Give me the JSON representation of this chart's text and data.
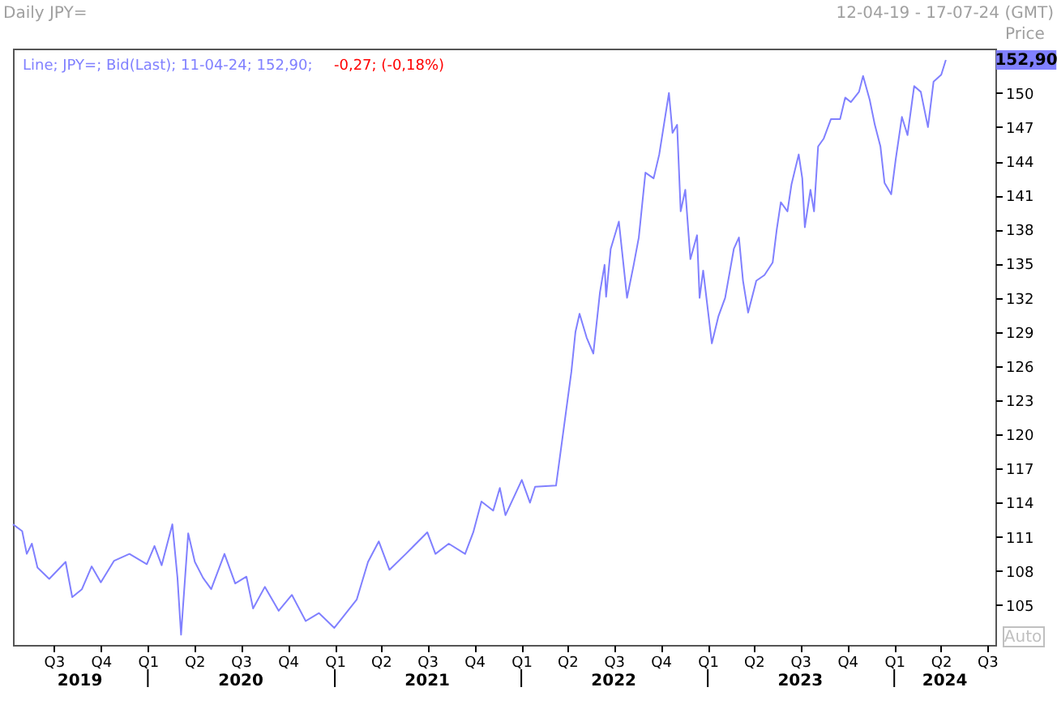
{
  "chart_data": {
    "type": "line",
    "title": "Daily JPY=",
    "subtitle": "12-04-19 - 17-07-24 (GMT)",
    "ylabel": "Price",
    "x": [
      "2019-04-12",
      "2019-04-30",
      "2019-05-09",
      "2019-05-19",
      "2019-05-30",
      "2019-06-22",
      "2019-07-24",
      "2019-08-06",
      "2019-08-25",
      "2019-09-13",
      "2019-10-01",
      "2019-10-27",
      "2019-11-26",
      "2019-12-30",
      "2020-01-14",
      "2020-01-28",
      "2020-02-18",
      "2020-02-28",
      "2020-03-06",
      "2020-03-20",
      "2020-04-02",
      "2020-04-18",
      "2020-05-04",
      "2020-05-30",
      "2020-06-20",
      "2020-07-12",
      "2020-07-25",
      "2020-08-17",
      "2020-09-13",
      "2020-10-09",
      "2020-11-05",
      "2020-12-01",
      "2020-12-31",
      "2021-01-23",
      "2021-02-13",
      "2021-03-07",
      "2021-03-28",
      "2021-04-18",
      "2021-05-20",
      "2021-07-01",
      "2021-07-17",
      "2021-08-12",
      "2021-09-13",
      "2021-09-29",
      "2021-10-15",
      "2021-11-07",
      "2021-11-20",
      "2021-12-01",
      "2022-01-02",
      "2022-01-18",
      "2022-01-28",
      "2022-03-10",
      "2022-04-09",
      "2022-04-17",
      "2022-04-25",
      "2022-05-09",
      "2022-05-22",
      "2022-06-04",
      "2022-06-13",
      "2022-06-16",
      "2022-06-25",
      "2022-07-11",
      "2022-07-27",
      "2022-08-09",
      "2022-08-19",
      "2022-09-01",
      "2022-09-17",
      "2022-09-28",
      "2022-10-11",
      "2022-10-17",
      "2022-10-24",
      "2022-11-02",
      "2022-11-09",
      "2022-11-18",
      "2022-11-28",
      "2022-12-11",
      "2022-12-16",
      "2022-12-23",
      "2023-01-09",
      "2023-01-22",
      "2023-02-04",
      "2023-02-21",
      "2023-03-03",
      "2023-03-11",
      "2023-03-21",
      "2023-04-06",
      "2023-04-22",
      "2023-05-08",
      "2023-05-16",
      "2023-05-24",
      "2023-06-06",
      "2023-06-14",
      "2023-06-28",
      "2023-07-05",
      "2023-07-10",
      "2023-07-21",
      "2023-07-28",
      "2023-08-05",
      "2023-08-16",
      "2023-08-30",
      "2023-09-17",
      "2023-09-27",
      "2023-10-08",
      "2023-10-24",
      "2023-11-01",
      "2023-11-14",
      "2023-11-24",
      "2023-12-05",
      "2023-12-13",
      "2023-12-26",
      "2024-01-04",
      "2024-01-16",
      "2024-01-27",
      "2024-02-09",
      "2024-02-22",
      "2024-03-07",
      "2024-03-18",
      "2024-04-02",
      "2024-04-11"
    ],
    "series": [
      {
        "name": "Line; JPY=; Bid(Last); 11-04-24; 152,90;",
        "color": "#8080ff",
        "values": [
          112.1,
          111.5,
          109.5,
          110.4,
          108.3,
          107.3,
          108.8,
          105.7,
          106.4,
          108.4,
          107.0,
          108.9,
          109.5,
          108.6,
          110.2,
          108.5,
          112.1,
          107.4,
          102.4,
          111.3,
          108.8,
          107.4,
          106.4,
          109.5,
          106.9,
          107.5,
          104.7,
          106.6,
          104.5,
          105.9,
          103.6,
          104.3,
          103.0,
          104.3,
          105.5,
          108.8,
          110.6,
          108.1,
          109.5,
          111.4,
          109.5,
          110.4,
          109.5,
          111.4,
          114.1,
          113.3,
          115.3,
          112.9,
          116.0,
          114.0,
          115.4,
          115.5,
          125.5,
          129.0,
          130.6,
          128.5,
          127.1,
          132.5,
          134.9,
          132.1,
          136.3,
          138.7,
          132.0,
          134.9,
          137.3,
          143.0,
          142.5,
          144.6,
          148.3,
          150.0,
          146.5,
          147.2,
          139.6,
          141.5,
          135.4,
          137.5,
          132.0,
          134.4,
          128.0,
          130.4,
          132.0,
          136.3,
          137.3,
          133.5,
          130.7,
          133.5,
          134.0,
          135.1,
          138.0,
          140.4,
          139.6,
          142.0,
          144.6,
          142.5,
          138.2,
          141.5,
          139.6,
          145.3,
          146.0,
          147.7,
          147.7,
          149.6,
          149.2,
          150.1,
          151.5,
          149.4,
          147.2,
          145.3,
          142.1,
          141.1,
          144.2,
          147.9,
          146.3,
          150.6,
          150.1,
          147.0,
          151.0,
          151.6,
          152.9
        ]
      }
    ],
    "annotations": [
      "-0,27; (-0,18%)",
      "Auto",
      {
        "text": "152,90",
        "y": 152.9
      }
    ],
    "xlim": [
      "2019-04-12",
      "2024-07-17"
    ],
    "xticks": [
      {
        "value": "2019-07-01",
        "label": "Q3"
      },
      {
        "value": "2019-10-01",
        "label": "Q4"
      },
      {
        "value": "2020-01-01",
        "label": "Q1"
      },
      {
        "value": "2020-04-01",
        "label": "Q2"
      },
      {
        "value": "2020-07-01",
        "label": "Q3"
      },
      {
        "value": "2020-10-01",
        "label": "Q4"
      },
      {
        "value": "2021-01-01",
        "label": "Q1"
      },
      {
        "value": "2021-04-01",
        "label": "Q2"
      },
      {
        "value": "2021-07-01",
        "label": "Q3"
      },
      {
        "value": "2021-10-01",
        "label": "Q4"
      },
      {
        "value": "2022-01-01",
        "label": "Q1"
      },
      {
        "value": "2022-04-01",
        "label": "Q2"
      },
      {
        "value": "2022-07-01",
        "label": "Q3"
      },
      {
        "value": "2022-10-01",
        "label": "Q4"
      },
      {
        "value": "2023-01-01",
        "label": "Q1"
      },
      {
        "value": "2023-04-01",
        "label": "Q2"
      },
      {
        "value": "2023-07-01",
        "label": "Q3"
      },
      {
        "value": "2023-10-01",
        "label": "Q4"
      },
      {
        "value": "2024-01-01",
        "label": "Q1"
      },
      {
        "value": "2024-04-01",
        "label": "Q2"
      },
      {
        "value": "2024-07-01",
        "label": "Q3"
      }
    ],
    "x2lim": [
      "2019-04-12",
      "2024-07-17"
    ],
    "x2ticks": [
      {
        "value": "2019-08-21",
        "label": "2019"
      },
      {
        "value": "2020-01-01",
        "label": null
      },
      {
        "value": "2020-07-01",
        "label": "2020"
      },
      {
        "value": "2021-01-01",
        "label": null
      },
      {
        "value": "2021-07-01",
        "label": "2021"
      },
      {
        "value": "2022-01-01",
        "label": null
      },
      {
        "value": "2022-07-01",
        "label": "2022"
      },
      {
        "value": "2023-01-01",
        "label": null
      },
      {
        "value": "2023-07-01",
        "label": "2023"
      },
      {
        "value": "2024-01-01",
        "label": null
      },
      {
        "value": "2024-04-09",
        "label": "2024"
      }
    ],
    "ylim": [
      101.5,
      153.9
    ],
    "yticks": [
      105,
      108,
      111,
      114,
      117,
      120,
      123,
      126,
      129,
      132,
      135,
      138,
      141,
      144,
      147,
      150
    ],
    "grid": false,
    "line_style": "solid",
    "marker": "none"
  }
}
